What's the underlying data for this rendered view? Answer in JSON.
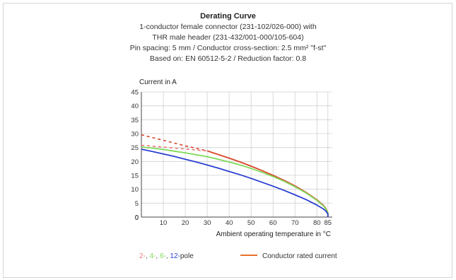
{
  "chart_data": {
    "type": "line",
    "title": "Derating Curve",
    "subtitle_lines": [
      "1-conductor female connector (231-102/026-000) with",
      "THR male header (231-432/001-000/105-604)",
      "Pin spacing: 5 mm / Conductor cross-section: 2.5 mm² \"f-st\"",
      "Based on: EN 60512-5-2 / Reduction factor: 0.8"
    ],
    "ylabel": "Current in A",
    "xlabel": "Ambient operating temperature in °C",
    "xlim": [
      0,
      87
    ],
    "ylim": [
      0,
      45
    ],
    "x_ticks": [
      10,
      20,
      30,
      40,
      50,
      60,
      70,
      80,
      85
    ],
    "y_ticks": [
      0,
      5,
      10,
      15,
      20,
      25,
      30,
      35,
      40,
      45
    ],
    "grid": true,
    "series": [
      {
        "name": "Conductor rated current",
        "color": "#d9452b",
        "dashed_x": [
          0,
          5,
          10,
          15,
          20,
          25,
          30
        ],
        "dashed_y": [
          29.6,
          28.6,
          27.6,
          26.6,
          25.6,
          24.7,
          23.8
        ],
        "x": [
          30,
          35,
          40,
          45,
          50,
          55,
          60,
          65,
          70,
          75,
          80,
          83,
          84,
          85,
          85
        ],
        "y": [
          23.8,
          22.5,
          21.2,
          19.8,
          18.3,
          16.7,
          15.0,
          13.2,
          11.2,
          8.9,
          6.2,
          4.2,
          3.2,
          1.5,
          0
        ]
      },
      {
        "name": "2-pole",
        "color": "#e87878",
        "dashed_x": [
          0,
          5,
          10,
          15,
          20,
          25,
          30
        ],
        "dashed_y": [
          25.8,
          25.5,
          25.2,
          24.8,
          24.5,
          24.1,
          23.8
        ],
        "x": [],
        "y": []
      },
      {
        "name": "4-, 6-pole",
        "color": "#7ed957",
        "x": [
          0,
          5,
          10,
          15,
          20,
          25,
          30,
          35,
          40,
          45,
          50,
          55,
          60,
          65,
          70,
          75,
          80,
          83,
          84,
          85,
          85
        ],
        "y": [
          25.2,
          24.8,
          24.3,
          23.7,
          23.1,
          22.4,
          21.7,
          20.8,
          19.8,
          18.7,
          17.5,
          16.1,
          14.6,
          12.9,
          10.9,
          8.7,
          6.0,
          4.0,
          3.0,
          1.4,
          0
        ]
      },
      {
        "name": "12-pole",
        "color": "#2b3fd1",
        "x": [
          0,
          5,
          10,
          15,
          20,
          25,
          30,
          35,
          40,
          45,
          50,
          55,
          60,
          65,
          70,
          75,
          80,
          83,
          84,
          85,
          85
        ],
        "y": [
          24.4,
          23.6,
          22.7,
          21.8,
          20.8,
          19.8,
          18.7,
          17.6,
          16.4,
          15.2,
          13.9,
          12.5,
          11.1,
          9.6,
          8.0,
          6.3,
          4.3,
          2.9,
          2.2,
          1.1,
          0
        ]
      }
    ],
    "legend": {
      "placement": "bottom",
      "pole_items": [
        {
          "text": "2-",
          "color": "#e87878"
        },
        {
          "text": ", ",
          "color": "#555555"
        },
        {
          "text": "4-",
          "color": "#7ed957"
        },
        {
          "text": ", ",
          "color": "#555555"
        },
        {
          "text": "6-",
          "color": "#7ed957"
        },
        {
          "text": ", ",
          "color": "#555555"
        },
        {
          "text": "12-",
          "color": "#2b3fd1"
        },
        {
          "text": "pole",
          "color": "#333333"
        }
      ],
      "rated_label": "Conductor rated current",
      "rated_color": "#e8702a"
    }
  }
}
